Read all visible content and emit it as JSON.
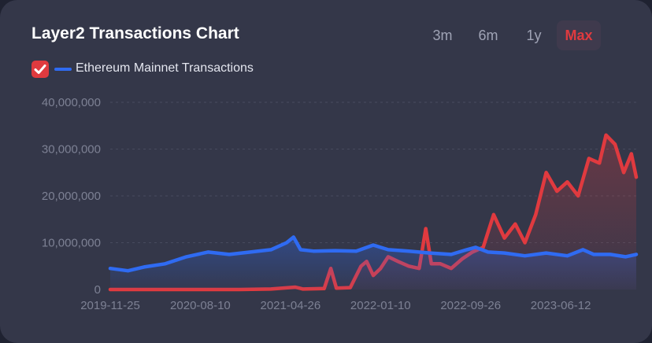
{
  "header": {
    "title": "Layer2 Transactions Chart",
    "ranges": [
      {
        "label": "3m",
        "active": false
      },
      {
        "label": "6m",
        "active": false
      },
      {
        "label": "1y",
        "active": false
      },
      {
        "label": "Max",
        "active": true
      }
    ]
  },
  "legend": {
    "label": "Ethereum Mainnet Transactions",
    "checkbox_checked": true,
    "check_icon": "check-icon"
  },
  "colors": {
    "red_series": "#e03a3f",
    "blue_series": "#2f6bf2",
    "accent": "#e03a3f"
  },
  "chart_data": {
    "type": "area",
    "ylim": [
      0,
      40000000
    ],
    "y_ticks": [
      0,
      10000000,
      20000000,
      30000000,
      40000000
    ],
    "y_tick_labels": [
      "0",
      "10,000,000",
      "20,000,000",
      "30,000,000",
      "40,000,000"
    ],
    "x_ticks": [
      "2019-11-25",
      "2020-08-10",
      "2021-04-26",
      "2022-01-10",
      "2022-09-26",
      "2023-06-12"
    ],
    "x_range": [
      "2019-11-25",
      "2024-01-15"
    ],
    "grid": true,
    "series": [
      {
        "color": "#e03a3f",
        "points": [
          [
            "2019-11-25",
            0
          ],
          [
            "2020-03-01",
            0
          ],
          [
            "2020-06-01",
            0
          ],
          [
            "2020-09-01",
            0
          ],
          [
            "2020-12-01",
            0
          ],
          [
            "2021-03-01",
            100000
          ],
          [
            "2021-05-10",
            500000
          ],
          [
            "2021-06-01",
            100000
          ],
          [
            "2021-08-01",
            200000
          ],
          [
            "2021-08-20",
            4500000
          ],
          [
            "2021-09-05",
            300000
          ],
          [
            "2021-10-15",
            400000
          ],
          [
            "2021-11-15",
            5000000
          ],
          [
            "2021-12-01",
            6000000
          ],
          [
            "2021-12-20",
            3000000
          ],
          [
            "2022-01-10",
            4500000
          ],
          [
            "2022-02-01",
            7000000
          ],
          [
            "2022-03-01",
            6000000
          ],
          [
            "2022-04-01",
            5000000
          ],
          [
            "2022-05-01",
            4500000
          ],
          [
            "2022-05-20",
            13000000
          ],
          [
            "2022-06-05",
            5500000
          ],
          [
            "2022-07-01",
            5500000
          ],
          [
            "2022-08-01",
            4500000
          ],
          [
            "2022-09-01",
            6500000
          ],
          [
            "2022-10-01",
            8000000
          ],
          [
            "2022-11-01",
            9000000
          ],
          [
            "2022-12-01",
            16000000
          ],
          [
            "2023-01-01",
            11000000
          ],
          [
            "2023-02-01",
            14000000
          ],
          [
            "2023-03-01",
            10000000
          ],
          [
            "2023-04-01",
            16000000
          ],
          [
            "2023-05-01",
            25000000
          ],
          [
            "2023-06-01",
            21000000
          ],
          [
            "2023-07-01",
            23000000
          ],
          [
            "2023-08-01",
            20000000
          ],
          [
            "2023-09-01",
            28000000
          ],
          [
            "2023-10-01",
            27000000
          ],
          [
            "2023-10-20",
            33000000
          ],
          [
            "2023-11-15",
            31000000
          ],
          [
            "2023-12-10",
            25000000
          ],
          [
            "2024-01-01",
            29000000
          ],
          [
            "2024-01-15",
            24000000
          ]
        ]
      },
      {
        "name": "Ethereum Mainnet Transactions",
        "color": "#2f6bf2",
        "points": [
          [
            "2019-11-25",
            4500000
          ],
          [
            "2020-01-15",
            4000000
          ],
          [
            "2020-03-01",
            4800000
          ],
          [
            "2020-05-01",
            5500000
          ],
          [
            "2020-07-01",
            7000000
          ],
          [
            "2020-09-01",
            8000000
          ],
          [
            "2020-11-01",
            7500000
          ],
          [
            "2021-01-01",
            8000000
          ],
          [
            "2021-03-01",
            8500000
          ],
          [
            "2021-04-15",
            10000000
          ],
          [
            "2021-05-05",
            11200000
          ],
          [
            "2021-05-25",
            8500000
          ],
          [
            "2021-07-01",
            8200000
          ],
          [
            "2021-09-01",
            8300000
          ],
          [
            "2021-11-01",
            8200000
          ],
          [
            "2021-12-20",
            9500000
          ],
          [
            "2022-02-01",
            8500000
          ],
          [
            "2022-04-01",
            8200000
          ],
          [
            "2022-06-01",
            7800000
          ],
          [
            "2022-08-01",
            7500000
          ],
          [
            "2022-09-15",
            8500000
          ],
          [
            "2022-10-10",
            9000000
          ],
          [
            "2022-11-15",
            8000000
          ],
          [
            "2023-01-01",
            7800000
          ],
          [
            "2023-03-01",
            7200000
          ],
          [
            "2023-05-01",
            7800000
          ],
          [
            "2023-07-01",
            7200000
          ],
          [
            "2023-08-15",
            8500000
          ],
          [
            "2023-09-15",
            7500000
          ],
          [
            "2023-11-01",
            7500000
          ],
          [
            "2023-12-15",
            7000000
          ],
          [
            "2024-01-15",
            7500000
          ]
        ]
      }
    ]
  }
}
